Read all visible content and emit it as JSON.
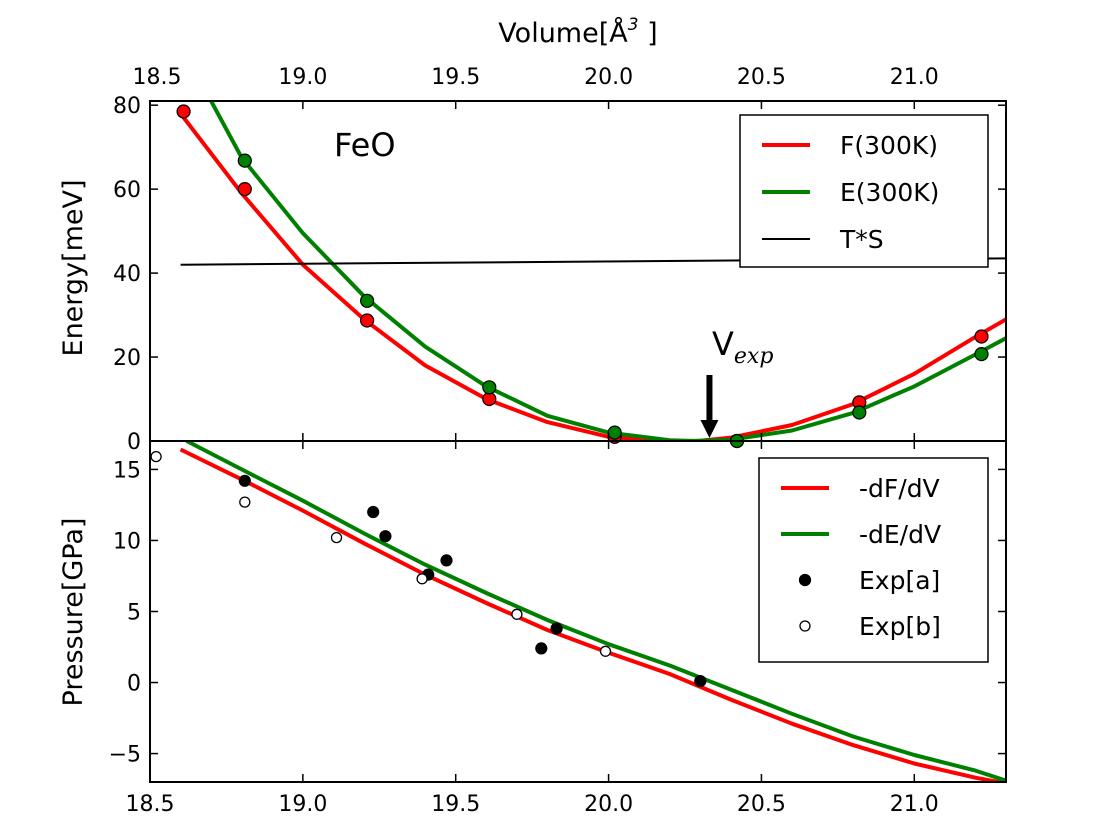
{
  "chart_data": [
    {
      "type": "line",
      "panel": "top",
      "top_axis_label": "Volume[Å³ ]",
      "top_axis_label_base": "Volume[Å",
      "top_axis_label_sup": "3",
      "top_axis_label_end": " ]",
      "xlim": [
        18.5,
        21.3
      ],
      "x_ticks": [
        18.5,
        19.0,
        19.5,
        20.0,
        20.5,
        21.0
      ],
      "x_tick_labels": [
        "18.5",
        "19.0",
        "19.5",
        "20.0",
        "20.5",
        "21.0"
      ],
      "ylabel": "Energy[meV]",
      "ylim": [
        0,
        81
      ],
      "y_ticks": [
        0,
        20,
        40,
        60,
        80
      ],
      "y_tick_labels": [
        "0",
        "20",
        "40",
        "60",
        "80"
      ],
      "annotation": "FeO",
      "arrow_label": "V",
      "arrow_label_sub": "exp",
      "arrow_x": 20.33,
      "legend_position": "top-right",
      "series": [
        {
          "name": "F(300K)",
          "color": "#ff0000",
          "curve": {
            "x": [
              18.6,
              18.8,
              19.0,
              19.2,
              19.4,
              19.6,
              19.8,
              20.0,
              20.1,
              20.2,
              20.25,
              20.3,
              20.4,
              20.6,
              20.8,
              21.0,
              21.2,
              21.3
            ],
            "y": [
              78.0,
              59.0,
              42.0,
              29.0,
              18.0,
              10.0,
              4.5,
              1.0,
              0.3,
              0.05,
              0.0,
              0.05,
              0.8,
              3.8,
              8.8,
              16.0,
              24.8,
              29.0
            ]
          },
          "points": {
            "x": [
              18.61,
              18.81,
              19.21,
              19.61,
              20.02,
              20.42,
              20.82,
              21.22
            ],
            "y": [
              78.5,
              60.0,
              28.7,
              10.0,
              1.0,
              0.0,
              9.2,
              24.9
            ]
          }
        },
        {
          "name": "E(300K)",
          "color": "#008000",
          "curve": {
            "x": [
              18.7,
              18.8,
              19.0,
              19.2,
              19.4,
              19.6,
              19.8,
              20.0,
              20.2,
              20.28,
              20.4,
              20.6,
              20.8,
              21.0,
              21.2,
              21.3
            ],
            "y": [
              81.0,
              67.5,
              49.5,
              34.5,
              22.5,
              13.0,
              6.0,
              2.0,
              0.2,
              0.0,
              0.3,
              2.5,
              6.7,
              13.0,
              20.6,
              24.5
            ]
          },
          "points": {
            "x": [
              18.81,
              19.21,
              19.61,
              20.02,
              20.42,
              20.82,
              21.22
            ],
            "y": [
              66.8,
              33.4,
              12.8,
              2.0,
              0.0,
              6.8,
              20.7
            ]
          }
        },
        {
          "name": "T*S",
          "color": "#000000",
          "curve": {
            "x": [
              18.6,
              21.3
            ],
            "y": [
              42.0,
              43.5
            ]
          }
        }
      ]
    },
    {
      "type": "line",
      "panel": "bottom",
      "xlim": [
        18.5,
        21.3
      ],
      "x_ticks": [
        18.5,
        19.0,
        19.5,
        20.0,
        20.5,
        21.0
      ],
      "x_tick_labels": [
        "18.5",
        "19.0",
        "19.5",
        "20.0",
        "20.5",
        "21.0"
      ],
      "ylabel": "Pressure[GPa]",
      "ylim": [
        -7,
        17
      ],
      "y_ticks": [
        -5,
        0,
        5,
        10,
        15
      ],
      "y_tick_labels": [
        "−5",
        "0",
        "5",
        "10",
        "15"
      ],
      "legend_position": "top-right",
      "series": [
        {
          "name": "-dF/dV",
          "color": "#ff0000",
          "curve": {
            "x": [
              18.6,
              18.8,
              19.0,
              19.2,
              19.4,
              19.6,
              19.8,
              20.0,
              20.2,
              20.4,
              20.6,
              20.8,
              21.0,
              21.2,
              21.3
            ],
            "y": [
              16.4,
              14.3,
              12.1,
              9.8,
              7.6,
              5.6,
              3.7,
              2.1,
              0.6,
              -1.2,
              -2.9,
              -4.4,
              -5.7,
              -6.7,
              -7.1
            ]
          }
        },
        {
          "name": "-dE/dV",
          "color": "#008000",
          "curve": {
            "x": [
              18.62,
              18.8,
              19.0,
              19.2,
              19.4,
              19.6,
              19.8,
              20.0,
              20.2,
              20.4,
              20.6,
              20.8,
              21.0,
              21.2,
              21.3
            ],
            "y": [
              17.0,
              15.0,
              12.8,
              10.5,
              8.3,
              6.3,
              4.4,
              2.7,
              1.2,
              -0.5,
              -2.2,
              -3.8,
              -5.1,
              -6.2,
              -6.9
            ]
          }
        },
        {
          "name": "Exp[a]",
          "marker": "filled",
          "color": "#000000",
          "points": {
            "x": [
              18.81,
              19.23,
              19.27,
              19.41,
              19.47,
              19.78,
              19.83,
              20.3
            ],
            "y": [
              14.2,
              12.0,
              10.3,
              7.6,
              8.6,
              2.4,
              3.8,
              0.1
            ]
          }
        },
        {
          "name": "Exp[b]",
          "marker": "open",
          "color": "#000000",
          "points": {
            "x": [
              18.52,
              18.81,
              19.11,
              19.39,
              19.7,
              19.99
            ],
            "y": [
              15.9,
              12.7,
              10.2,
              7.3,
              4.8,
              2.2
            ]
          }
        }
      ]
    }
  ]
}
